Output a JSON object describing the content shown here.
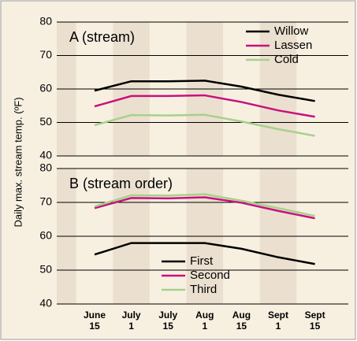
{
  "ylabel": "Daily max. stream temp. (ºF)",
  "chart_data": [
    {
      "type": "line",
      "title": "A (stream)",
      "categories": [
        "June 15",
        "July 1",
        "July 15",
        "Aug 1",
        "Aug 15",
        "Sept 1",
        "Sept 15"
      ],
      "series": [
        {
          "name": "Willow",
          "color": "#000000",
          "values": [
            59.5,
            62.3,
            62.3,
            62.5,
            60.7,
            58.3,
            56.4
          ]
        },
        {
          "name": "Lassen",
          "color": "#c8117d",
          "values": [
            54.8,
            57.9,
            57.9,
            58.1,
            56.1,
            53.6,
            51.7
          ]
        },
        {
          "name": "Cold",
          "color": "#a8d08d",
          "values": [
            49.2,
            52.2,
            52.1,
            52.3,
            50.3,
            48.0,
            46.0
          ]
        }
      ],
      "ylim": [
        40,
        80
      ],
      "yticks": [
        40,
        50,
        60,
        70,
        80
      ],
      "grid": true,
      "legend": "upper right"
    },
    {
      "type": "line",
      "title": "B (stream order)",
      "categories": [
        "June 15",
        "July 1",
        "July 15",
        "Aug 1",
        "Aug 15",
        "Sept 1",
        "Sept 15"
      ],
      "series": [
        {
          "name": "First",
          "color": "#000000",
          "values": [
            54.6,
            58.0,
            58.0,
            58.0,
            56.3,
            53.8,
            51.8
          ]
        },
        {
          "name": "Second",
          "color": "#c8117d",
          "values": [
            68.3,
            71.3,
            71.2,
            71.5,
            69.9,
            67.5,
            65.3
          ]
        },
        {
          "name": "Third",
          "color": "#a8d08d",
          "values": [
            68.8,
            72.1,
            72.0,
            72.4,
            70.5,
            68.3,
            66.0
          ]
        }
      ],
      "ylim": [
        40,
        80
      ],
      "yticks": [
        40,
        50,
        60,
        70,
        80
      ],
      "grid": true,
      "legend": "lower center"
    }
  ]
}
